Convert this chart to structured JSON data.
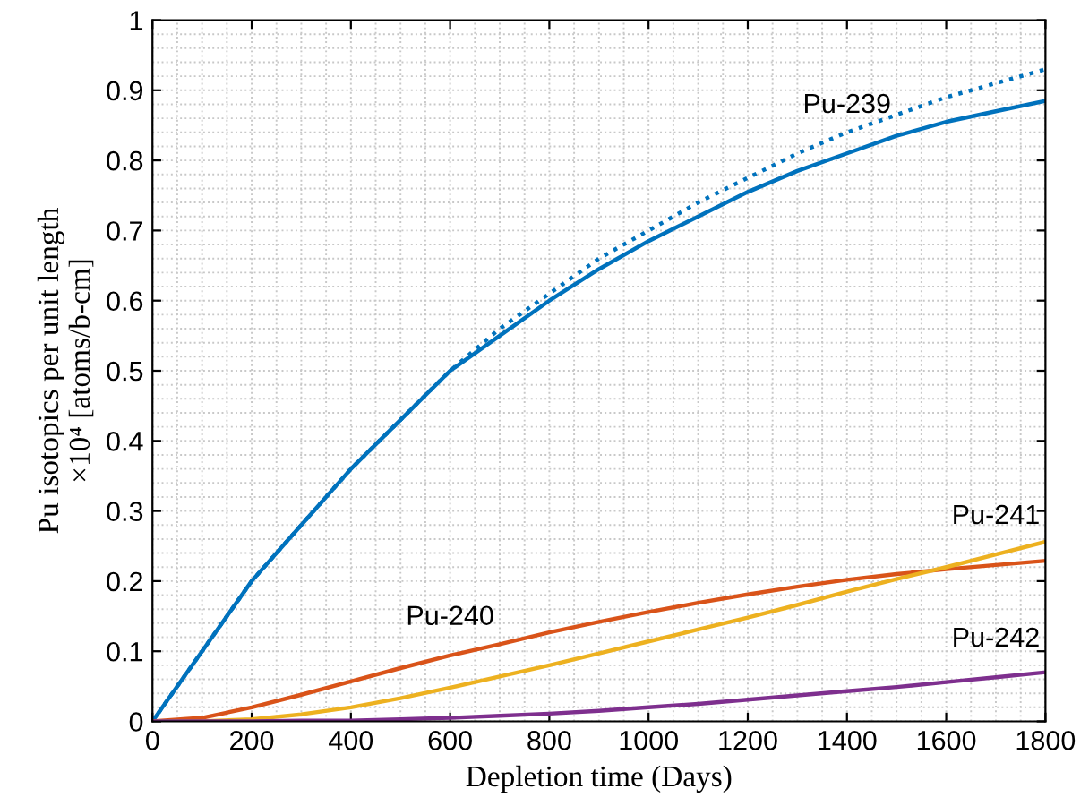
{
  "chart_data": {
    "type": "line",
    "xlabel": "Depletion time (Days)",
    "ylabel": "Pu isotopics per unit length\n×10⁴ [atoms/b-cm]",
    "xlim": [
      0,
      1800
    ],
    "ylim": [
      0,
      1
    ],
    "xticks": [
      0,
      200,
      400,
      600,
      800,
      1000,
      1200,
      1400,
      1600,
      1800
    ],
    "yticks": [
      0,
      0.1,
      0.2,
      0.3,
      0.4,
      0.5,
      0.6,
      0.7,
      0.8,
      0.9,
      1
    ],
    "grid": true,
    "x": [
      0,
      100,
      200,
      300,
      400,
      500,
      600,
      700,
      800,
      900,
      1000,
      1100,
      1200,
      1300,
      1400,
      1500,
      1600,
      1700,
      1800
    ],
    "series": [
      {
        "color": "#0072bd",
        "line_style": "dotted",
        "values": [
          0,
          0.1,
          0.2,
          0.28,
          0.36,
          0.43,
          0.5,
          0.56,
          0.61,
          0.66,
          0.7,
          0.74,
          0.775,
          0.81,
          0.84,
          0.865,
          0.89,
          0.91,
          0.93
        ]
      },
      {
        "name": "Pu-239",
        "color": "#0072bd",
        "line_style": "solid",
        "values": [
          0,
          0.1,
          0.2,
          0.28,
          0.36,
          0.43,
          0.5,
          0.55,
          0.6,
          0.645,
          0.685,
          0.72,
          0.755,
          0.785,
          0.81,
          0.835,
          0.855,
          0.87,
          0.885
        ]
      },
      {
        "name": "Pu-240",
        "color": "#d95319",
        "line_style": "solid",
        "values": [
          0,
          0.005,
          0.02,
          0.038,
          0.057,
          0.076,
          0.094,
          0.11,
          0.127,
          0.142,
          0.156,
          0.169,
          0.181,
          0.192,
          0.202,
          0.21,
          0.217,
          0.223,
          0.229
        ]
      },
      {
        "name": "Pu-241",
        "color": "#edb120",
        "line_style": "solid",
        "values": [
          0,
          0,
          0.003,
          0.01,
          0.02,
          0.033,
          0.048,
          0.064,
          0.08,
          0.097,
          0.114,
          0.131,
          0.148,
          0.166,
          0.185,
          0.203,
          0.22,
          0.238,
          0.256
        ]
      },
      {
        "name": "Pu-242",
        "color": "#7e2f8e",
        "line_style": "solid",
        "values": [
          0,
          0,
          0,
          0.001,
          0.001,
          0.003,
          0.005,
          0.008,
          0.011,
          0.015,
          0.02,
          0.025,
          0.031,
          0.037,
          0.043,
          0.049,
          0.056,
          0.063,
          0.07
        ]
      }
    ]
  }
}
